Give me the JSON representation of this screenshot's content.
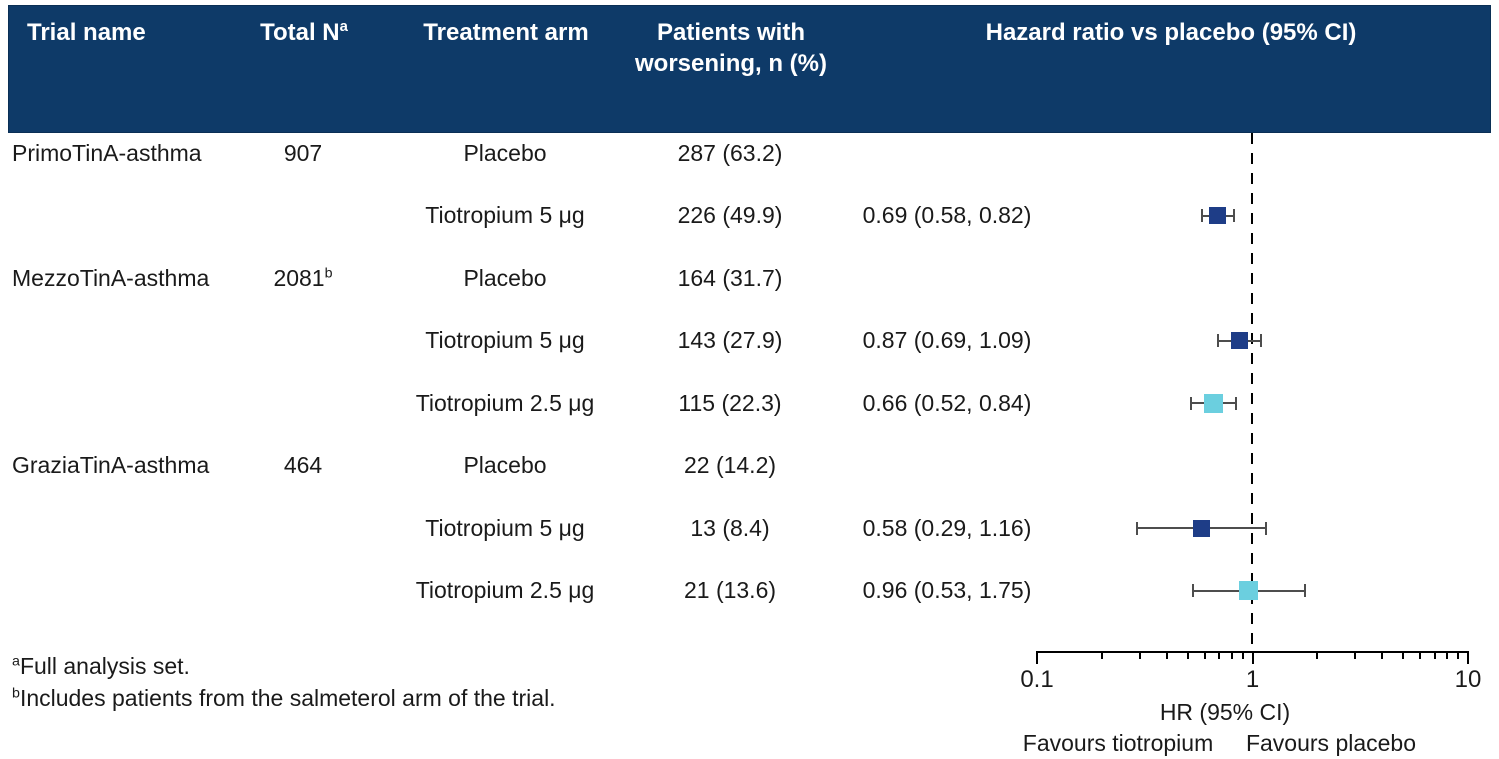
{
  "colors": {
    "header_bg": "#0e3a68",
    "header_text": "#ffffff",
    "marker_dark": "#1e3d87",
    "marker_light": "#6bcfdf",
    "error_bar": "#4d4d4d",
    "reference_line": "#000000",
    "text": "#1a1a1a"
  },
  "header": {
    "trial": "Trial name",
    "total_n": "Total N",
    "total_n_sup": "a",
    "arm": "Treatment arm",
    "patients_line1": "Patients with",
    "patients_line2": "worsening, n (%)",
    "hazard": "Hazard ratio vs placebo (95% CI)"
  },
  "rows": [
    {
      "trial": "PrimoTinA-asthma",
      "total_n": "907",
      "total_n_sup": "",
      "arm": "Placebo",
      "patients": "287 (63.2)",
      "hr_text": ""
    },
    {
      "trial": "",
      "total_n": "",
      "total_n_sup": "",
      "arm": "Tiotropium 5 μg",
      "patients": "226 (49.9)",
      "hr_text": "0.69 (0.58, 0.82)"
    },
    {
      "trial": "MezzoTinA-asthma",
      "total_n": "2081",
      "total_n_sup": "b",
      "arm": "Placebo",
      "patients": "164 (31.7)",
      "hr_text": ""
    },
    {
      "trial": "",
      "total_n": "",
      "total_n_sup": "",
      "arm": "Tiotropium 5 μg",
      "patients": "143 (27.9)",
      "hr_text": "0.87 (0.69, 1.09)"
    },
    {
      "trial": "",
      "total_n": "",
      "total_n_sup": "",
      "arm": "Tiotropium 2.5 μg",
      "patients": "115 (22.3)",
      "hr_text": "0.66 (0.52, 0.84)"
    },
    {
      "trial": "GraziaTinA-asthma",
      "total_n": "464",
      "total_n_sup": "",
      "arm": "Placebo",
      "patients": "22 (14.2)",
      "hr_text": ""
    },
    {
      "trial": "",
      "total_n": "",
      "total_n_sup": "",
      "arm": "Tiotropium 5 μg",
      "patients": "13 (8.4)",
      "hr_text": "0.58 (0.29, 1.16)"
    },
    {
      "trial": "",
      "total_n": "",
      "total_n_sup": "",
      "arm": "Tiotropium 2.5 μg",
      "patients": "21 (13.6)",
      "hr_text": "0.96 (0.53, 1.75)"
    }
  ],
  "footnotes": [
    {
      "sup": "a",
      "text": "Full analysis set."
    },
    {
      "sup": "b",
      "text": "Includes patients from the salmeterol arm of the trial."
    }
  ],
  "chart_data": {
    "type": "forest",
    "x_scale": "log10",
    "xlim": [
      0.1,
      10
    ],
    "xlabel": "HR (95% CI)",
    "reference_line": 1,
    "major_ticks": [
      {
        "value": 0.1,
        "label": "0.1"
      },
      {
        "value": 1,
        "label": "1"
      },
      {
        "value": 10,
        "label": "10"
      }
    ],
    "minor_tick_values": [
      0.2,
      0.3,
      0.4,
      0.5,
      0.6,
      0.7,
      0.8,
      0.9,
      2,
      3,
      4,
      5,
      6,
      7,
      8,
      9
    ],
    "favours_left": "Favours tiotropium",
    "favours_right": "Favours placebo",
    "series": [
      {
        "id": "tiotropium_5",
        "label": "Tiotropium 5 μg",
        "color": "#1e3d87",
        "marker_size": 17
      },
      {
        "id": "tiotropium_2_5",
        "label": "Tiotropium 2.5 μg",
        "color": "#6bcfdf",
        "marker_size": 19
      }
    ],
    "points": [
      {
        "row_index": 1,
        "trial": "PrimoTinA-asthma",
        "series": "tiotropium_5",
        "hr": 0.69,
        "ci_low": 0.58,
        "ci_high": 0.82
      },
      {
        "row_index": 3,
        "trial": "MezzoTinA-asthma",
        "series": "tiotropium_5",
        "hr": 0.87,
        "ci_low": 0.69,
        "ci_high": 1.09
      },
      {
        "row_index": 4,
        "trial": "MezzoTinA-asthma",
        "series": "tiotropium_2_5",
        "hr": 0.66,
        "ci_low": 0.52,
        "ci_high": 0.84
      },
      {
        "row_index": 6,
        "trial": "GraziaTinA-asthma",
        "series": "tiotropium_5",
        "hr": 0.58,
        "ci_low": 0.29,
        "ci_high": 1.16
      },
      {
        "row_index": 7,
        "trial": "GraziaTinA-asthma",
        "series": "tiotropium_2_5",
        "hr": 0.96,
        "ci_low": 0.53,
        "ci_high": 1.75
      }
    ]
  }
}
